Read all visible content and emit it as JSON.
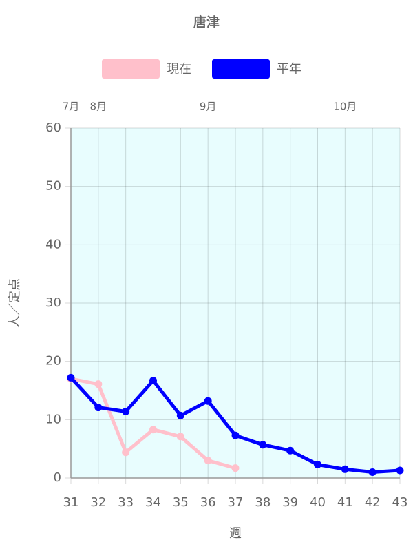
{
  "chart_data": {
    "type": "line",
    "title": "唐津",
    "xlabel": "週",
    "ylabel": "人／定点",
    "x": [
      31,
      32,
      33,
      34,
      35,
      36,
      37,
      38,
      39,
      40,
      41,
      42,
      43
    ],
    "xlim": [
      31,
      43
    ],
    "xticks": [
      31,
      32,
      33,
      34,
      35,
      36,
      37,
      38,
      39,
      40,
      41,
      42,
      43
    ],
    "ylim": [
      0,
      60
    ],
    "yticks": [
      0,
      10,
      20,
      30,
      40,
      50,
      60
    ],
    "top_labels": [
      {
        "value": 31,
        "label": "7月"
      },
      {
        "value": 32,
        "label": "8月"
      },
      {
        "value": 36,
        "label": "9月"
      },
      {
        "value": 41,
        "label": "10月"
      }
    ],
    "grid": true,
    "legend": "top",
    "background": "#e8fdfe",
    "series": [
      {
        "name": "現在",
        "color": "#ffc0cb",
        "values": [
          17.0,
          16.1,
          4.4,
          8.3,
          7.1,
          3.0,
          1.7,
          null,
          null,
          null,
          null,
          null,
          null
        ]
      },
      {
        "name": "平年",
        "color": "#0000ff",
        "values": [
          17.2,
          12.1,
          11.4,
          16.7,
          10.7,
          13.2,
          7.3,
          5.7,
          4.7,
          2.3,
          1.5,
          1.0,
          1.3
        ]
      }
    ]
  }
}
